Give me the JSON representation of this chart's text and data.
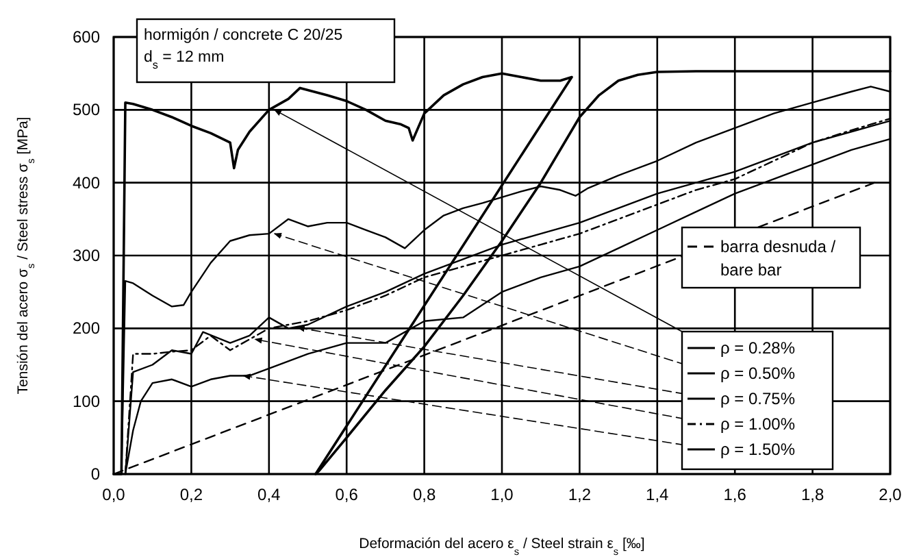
{
  "chart_data": {
    "type": "line",
    "xlabel": "Deformación del acero ε$_{s}$ / Steel strain ε$_{s}$ [‰]",
    "ylabel": "Tensión del acero σ$_{s}$ / Steel stress σ$_{s}$ [MPa]",
    "annotations": [
      "hormigón / concrete C 20/25",
      "d$_{s}$ = 12 mm"
    ],
    "xlim": [
      0,
      2.0
    ],
    "ylim": [
      0,
      600
    ],
    "xticks": [
      {
        "value": 0,
        "label": "0,0"
      },
      {
        "value": 0.2,
        "label": "0,2"
      },
      {
        "value": 0.4,
        "label": "0,4"
      },
      {
        "value": 0.6,
        "label": "0,6"
      },
      {
        "value": 0.8,
        "label": "0,8"
      },
      {
        "value": 1.0,
        "label": "1,0"
      },
      {
        "value": 1.2,
        "label": "1,2"
      },
      {
        "value": 1.4,
        "label": "1,4"
      },
      {
        "value": 1.6,
        "label": "1,6"
      },
      {
        "value": 1.8,
        "label": "1,8"
      },
      {
        "value": 2.0,
        "label": "2,0"
      }
    ],
    "yticks": [
      0,
      100,
      200,
      300,
      400,
      500,
      600
    ],
    "grid": true,
    "legend": "bottom right",
    "marker": "none",
    "series": [
      {
        "name": "ρ = 0.28%",
        "color": "#000000",
        "line_style": "solid",
        "x": [
          0,
          0.02,
          0.03,
          0.05,
          0.1,
          0.15,
          0.2,
          0.25,
          0.3,
          0.31,
          0.32,
          0.35,
          0.4,
          0.45,
          0.48,
          0.55,
          0.6,
          0.65,
          0.7,
          0.74,
          0.76,
          0.77,
          0.8,
          0.85,
          0.9,
          0.95,
          1.0,
          1.05,
          1.1,
          1.15,
          1.18,
          0.52,
          0.53,
          0.6,
          0.7,
          0.8,
          0.9,
          1.0,
          1.1,
          1.2,
          1.25,
          1.3,
          1.35,
          1.4,
          1.5,
          1.6,
          1.7,
          1.8,
          1.9,
          2.0
        ],
        "values": [
          0,
          0,
          510,
          508,
          500,
          490,
          478,
          468,
          455,
          420,
          445,
          470,
          500,
          515,
          530,
          520,
          512,
          500,
          485,
          480,
          475,
          458,
          495,
          520,
          535,
          545,
          550,
          545,
          540,
          540,
          545,
          0,
          5,
          50,
          115,
          175,
          245,
          320,
          400,
          490,
          520,
          540,
          548,
          552,
          553,
          553,
          553,
          553,
          553,
          553
        ]
      },
      {
        "name": "ρ = 0.50%",
        "color": "#000000",
        "line_style": "solid",
        "x": [
          0,
          0.02,
          0.03,
          0.05,
          0.1,
          0.15,
          0.18,
          0.2,
          0.25,
          0.3,
          0.35,
          0.4,
          0.45,
          0.5,
          0.55,
          0.6,
          0.65,
          0.7,
          0.75,
          0.8,
          0.85,
          0.9,
          0.95,
          1.0,
          1.05,
          1.1,
          1.15,
          1.19,
          1.22,
          1.3,
          1.4,
          1.5,
          1.6,
          1.7,
          1.8,
          1.9,
          1.95,
          2.0
        ],
        "values": [
          0,
          0,
          265,
          262,
          245,
          230,
          232,
          250,
          290,
          320,
          328,
          330,
          350,
          340,
          345,
          345,
          335,
          325,
          310,
          335,
          355,
          365,
          372,
          380,
          388,
          395,
          390,
          382,
          392,
          410,
          430,
          455,
          475,
          495,
          510,
          525,
          532,
          525
        ]
      },
      {
        "name": "ρ = 0.75%",
        "color": "#000000",
        "line_style": "solid",
        "x": [
          0.03,
          0.05,
          0.1,
          0.15,
          0.2,
          0.23,
          0.3,
          0.35,
          0.4,
          0.45,
          0.5,
          0.6,
          0.7,
          0.8,
          0.9,
          1.0,
          1.1,
          1.2,
          1.3,
          1.4,
          1.5,
          1.6,
          1.7,
          1.8,
          1.9,
          2.0
        ],
        "values": [
          0,
          140,
          150,
          170,
          165,
          195,
          180,
          190,
          215,
          200,
          205,
          230,
          250,
          275,
          295,
          315,
          330,
          345,
          365,
          385,
          400,
          415,
          435,
          455,
          470,
          485
        ]
      },
      {
        "name": "ρ = 1.00%",
        "color": "#000000",
        "line_style": "dotted",
        "x": [
          0.03,
          0.05,
          0.1,
          0.15,
          0.2,
          0.25,
          0.3,
          0.35,
          0.4,
          0.5,
          0.6,
          0.7,
          0.8,
          0.9,
          1.0,
          1.1,
          1.2,
          1.3,
          1.4,
          1.5,
          1.6,
          1.7,
          1.8,
          1.9,
          2.0
        ],
        "values": [
          0,
          165,
          165,
          168,
          170,
          190,
          170,
          185,
          200,
          210,
          225,
          245,
          270,
          285,
          300,
          315,
          330,
          350,
          370,
          390,
          405,
          430,
          455,
          472,
          488
        ]
      },
      {
        "name": "ρ = 1.50%",
        "color": "#000000",
        "line_style": "solid",
        "x": [
          0.03,
          0.05,
          0.07,
          0.1,
          0.15,
          0.2,
          0.25,
          0.3,
          0.35,
          0.4,
          0.5,
          0.6,
          0.7,
          0.8,
          0.9,
          1.0,
          1.1,
          1.2,
          1.3,
          1.4,
          1.5,
          1.6,
          1.7,
          1.8,
          1.9,
          2.0
        ],
        "values": [
          0,
          60,
          100,
          125,
          130,
          120,
          130,
          135,
          135,
          145,
          165,
          180,
          180,
          210,
          215,
          250,
          270,
          285,
          310,
          335,
          360,
          385,
          405,
          425,
          445,
          460
        ]
      },
      {
        "name": "barra desnuda / bare bar",
        "color": "#000000",
        "line_style": "dashed",
        "x": [
          0,
          1.96
        ],
        "values": [
          0,
          400
        ]
      }
    ]
  }
}
